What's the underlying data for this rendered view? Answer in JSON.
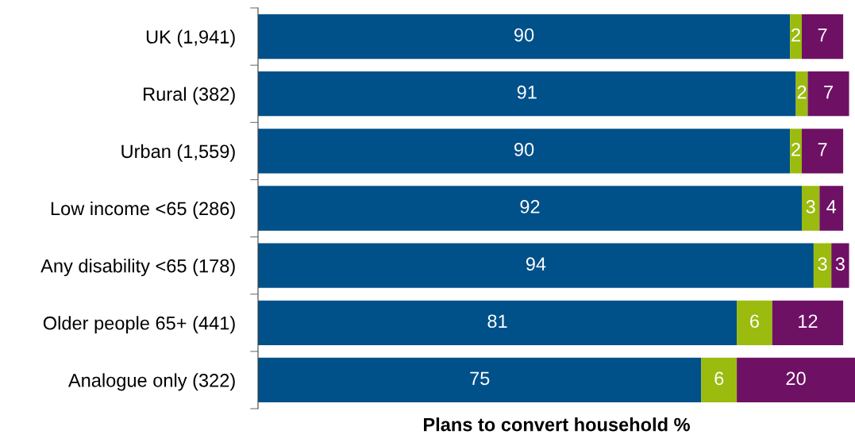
{
  "chart_data": {
    "type": "bar",
    "orientation": "horizontal",
    "stacked": true,
    "data_labels": true,
    "xlabel": "Plans to convert household %",
    "legend": false,
    "grid": false,
    "categories": [
      "UK (1,941)",
      "Rural (382)",
      "Urban (1,559)",
      "Low income <65 (286)",
      "Any disability <65 (178)",
      "Older people 65+ (441)",
      "Analogue only (322)"
    ],
    "series": [
      {
        "color": "#00508a",
        "values": [
          90,
          91,
          90,
          92,
          94,
          81,
          75
        ]
      },
      {
        "color": "#9bbb0e",
        "values": [
          2,
          2,
          2,
          3,
          3,
          6,
          6
        ]
      },
      {
        "color": "#6e1164",
        "values": [
          7,
          7,
          7,
          4,
          3,
          12,
          20
        ]
      }
    ]
  }
}
